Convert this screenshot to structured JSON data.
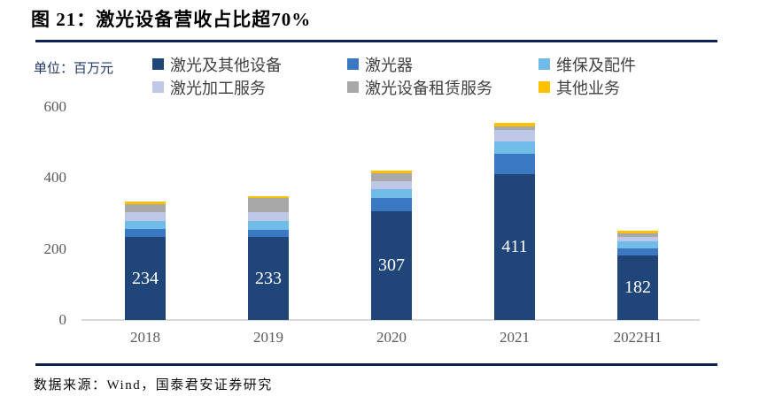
{
  "title": "图 21：激光设备营收占比超70%",
  "unit_label": "单位：百万元",
  "source": "数据来源：Wind，国泰君安证券研究",
  "colors": {
    "rule_navy": "#0E2152",
    "unit_text": "#1F3864",
    "axis_text": "#595959",
    "legend_text": "#404040",
    "baseline": "#D9D9D9",
    "bar_value_text": "#FFFFFF"
  },
  "chart_data": {
    "type": "bar",
    "stacked": true,
    "categories": [
      "2018",
      "2019",
      "2020",
      "2021",
      "2022H1"
    ],
    "series": [
      {
        "name": "激光及其他设备",
        "color": "#1F4579",
        "values": [
          234,
          233,
          307,
          411,
          182
        ],
        "show_value_labels": true
      },
      {
        "name": "激光器",
        "color": "#3A78C2",
        "values": [
          23,
          22,
          37,
          57,
          19
        ],
        "show_value_labels": false
      },
      {
        "name": "维保及配件",
        "color": "#70BBE8",
        "values": [
          23,
          23,
          25,
          35,
          20
        ],
        "show_value_labels": false
      },
      {
        "name": "激光加工服务",
        "color": "#BFC7E7",
        "values": [
          25,
          26,
          23,
          31,
          13
        ],
        "show_value_labels": false
      },
      {
        "name": "激光设备租赁服务",
        "color": "#A8A8A8",
        "values": [
          21,
          39,
          21,
          10,
          11
        ],
        "show_value_labels": false
      },
      {
        "name": "其他业务",
        "color": "#FFC000",
        "values": [
          8,
          7,
          7,
          10,
          8
        ],
        "show_value_labels": false
      }
    ],
    "bar_value_labels": [
      "234",
      "233",
      "307",
      "411",
      "182"
    ],
    "title": "激光设备营收占比超70%",
    "xlabel": "",
    "ylabel": "百万元",
    "yticks": [
      0,
      200,
      400,
      600
    ],
    "ylim": [
      0,
      600
    ],
    "grid": false,
    "legend_position": "top"
  }
}
